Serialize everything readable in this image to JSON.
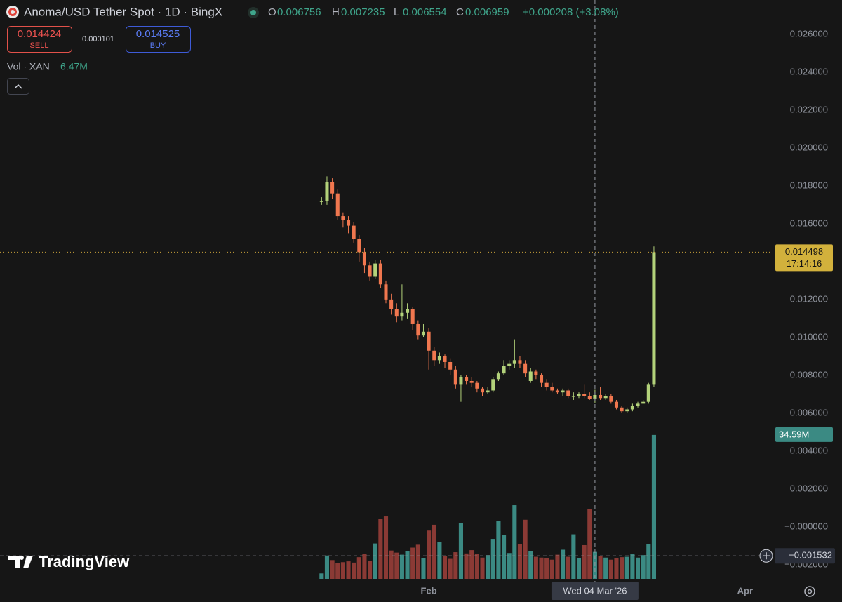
{
  "chart_data": {
    "type": "candlestick",
    "title": "Anoma/USD Tether Spot · 1D · BingX",
    "ohlc_prefixes": [
      "O",
      "H",
      "L",
      "C"
    ],
    "change": "+0.000208 (+3.08%)",
    "open": [
      0.01715,
      0.0172,
      0.0182,
      0.0176,
      0.0164,
      0.0162,
      0.0159,
      0.0152,
      0.0145,
      0.0138,
      0.0132,
      0.0139,
      0.0128,
      0.012,
      0.0115,
      0.0111,
      0.0113,
      0.0115,
      0.0107,
      0.0101,
      0.0103,
      0.0093,
      0.0088,
      0.009,
      0.0087,
      0.0083,
      0.0075,
      0.0079,
      0.0077,
      0.0076,
      0.0073,
      0.0071,
      0.0072,
      0.0078,
      0.0081,
      0.0085,
      0.0086,
      0.0088,
      0.0086,
      0.0077,
      0.0082,
      0.008,
      0.0076,
      0.0074,
      0.0072,
      0.0071,
      0.0072,
      0.0069,
      0.0069,
      0.007,
      0.0069,
      0.006756,
      0.00696,
      0.0068,
      0.0069,
      0.0066,
      0.0063,
      0.0061,
      0.0062,
      0.0064,
      0.0065,
      0.0066,
      0.0075
    ],
    "high": [
      0.0174,
      0.0185,
      0.0184,
      0.0178,
      0.0166,
      0.0164,
      0.0161,
      0.0154,
      0.0147,
      0.014,
      0.0141,
      0.0141,
      0.013,
      0.0123,
      0.0118,
      0.0128,
      0.0118,
      0.0116,
      0.0109,
      0.0107,
      0.0105,
      0.0095,
      0.0092,
      0.0091,
      0.0089,
      0.0085,
      0.008,
      0.008,
      0.0079,
      0.0077,
      0.0074,
      0.0074,
      0.0079,
      0.0082,
      0.0088,
      0.0088,
      0.0099,
      0.009,
      0.0088,
      0.0084,
      0.0083,
      0.0081,
      0.0078,
      0.0076,
      0.0073,
      0.0073,
      0.0073,
      0.0071,
      0.0071,
      0.0075,
      0.0071,
      0.007235,
      0.0074,
      0.007,
      0.007,
      0.0067,
      0.0064,
      0.0063,
      0.0065,
      0.0066,
      0.0067,
      0.0076,
      0.0148
    ],
    "low": [
      0.017,
      0.017,
      0.0173,
      0.0162,
      0.0158,
      0.0155,
      0.015,
      0.014,
      0.0134,
      0.013,
      0.0131,
      0.0126,
      0.0118,
      0.0112,
      0.0108,
      0.0109,
      0.011,
      0.0104,
      0.0099,
      0.01,
      0.0083,
      0.0085,
      0.0086,
      0.0084,
      0.008,
      0.0073,
      0.0066,
      0.0075,
      0.0074,
      0.0071,
      0.0069,
      0.007,
      0.0071,
      0.0077,
      0.008,
      0.0083,
      0.0084,
      0.0084,
      0.0079,
      0.0076,
      0.0078,
      0.0074,
      0.0072,
      0.0071,
      0.007,
      0.0069,
      0.0068,
      0.0067,
      0.0068,
      0.0068,
      0.0067,
      0.006554,
      0.0067,
      0.0067,
      0.0065,
      0.0062,
      0.006,
      0.006,
      0.0061,
      0.0063,
      0.0065,
      0.0065,
      0.0074
    ],
    "close": [
      0.0172,
      0.0182,
      0.0176,
      0.0164,
      0.0162,
      0.0159,
      0.0152,
      0.0145,
      0.0138,
      0.0132,
      0.0139,
      0.0128,
      0.012,
      0.0115,
      0.0111,
      0.0113,
      0.0115,
      0.0107,
      0.0101,
      0.0103,
      0.0093,
      0.0088,
      0.009,
      0.0087,
      0.0083,
      0.0075,
      0.0079,
      0.0077,
      0.0076,
      0.0073,
      0.0071,
      0.0072,
      0.0078,
      0.0081,
      0.0085,
      0.0086,
      0.0088,
      0.0086,
      0.0081,
      0.0082,
      0.008,
      0.0076,
      0.0074,
      0.0072,
      0.0071,
      0.0072,
      0.0069,
      0.0069,
      0.007,
      0.0069,
      0.006751,
      0.006959,
      0.0068,
      0.0069,
      0.0066,
      0.0063,
      0.0061,
      0.0062,
      0.0064,
      0.0065,
      0.0066,
      0.0075,
      0.014498
    ],
    "up_color": "#b3d27a",
    "down_color": "#f0774f",
    "ylim": [
      -0.00293,
      0.02781
    ],
    "yticks": [
      {
        "value": 0.026,
        "label": "0.026000"
      },
      {
        "value": 0.024,
        "label": "0.024000"
      },
      {
        "value": 0.022,
        "label": "0.022000"
      },
      {
        "value": 0.02,
        "label": "0.020000"
      },
      {
        "value": 0.018,
        "label": "0.018000"
      },
      {
        "value": 0.016,
        "label": "0.016000"
      },
      {
        "value": 0.012,
        "label": "0.012000"
      },
      {
        "value": 0.01,
        "label": "0.010000"
      },
      {
        "value": 0.008,
        "label": "0.008000"
      },
      {
        "value": 0.006,
        "label": "0.006000"
      },
      {
        "value": 0.004,
        "label": "0.004000"
      },
      {
        "value": 0.002,
        "label": "0.002000"
      },
      {
        "value": 0,
        "label": "−0.000000"
      },
      {
        "value": -0.002,
        "label": "−0.002000"
      }
    ],
    "xlim": [
      -60,
      84
    ],
    "xticks": [
      {
        "value": 20,
        "label": "Feb"
      },
      {
        "value": 79,
        "label": "Apr"
      }
    ],
    "volume": {
      "name": "Vol · XAN",
      "values": [
        1.3,
        5.6,
        4.5,
        3.8,
        4.0,
        4.2,
        3.9,
        5.2,
        6.0,
        4.3,
        8.5,
        14.4,
        15.0,
        6.8,
        6.3,
        5.8,
        6.6,
        7.5,
        8.2,
        4.9,
        11.6,
        13.0,
        8.8,
        5.5,
        4.8,
        6.4,
        13.4,
        6.1,
        6.9,
        5.9,
        5.1,
        5.7,
        9.6,
        13.9,
        10.5,
        6.2,
        17.7,
        8.3,
        14.2,
        6.7,
        5.3,
        5.1,
        5.0,
        4.6,
        5.8,
        7.0,
        5.3,
        10.7,
        5.0,
        8.1,
        16.7,
        6.47,
        5.4,
        5.1,
        4.6,
        5.0,
        5.2,
        5.3,
        5.9,
        5.1,
        5.7,
        8.4,
        34.59
      ],
      "value_labels": [
        null,
        null,
        null,
        null,
        null,
        null,
        null,
        null,
        null,
        null,
        null,
        null,
        null,
        null,
        null,
        null,
        null,
        null,
        null,
        null,
        null,
        null,
        null,
        null,
        null,
        null,
        null,
        null,
        null,
        null,
        null,
        null,
        null,
        null,
        null,
        null,
        null,
        null,
        null,
        null,
        null,
        null,
        null,
        null,
        null,
        null,
        null,
        null,
        null,
        null,
        null,
        "6.47M",
        null,
        null,
        null,
        null,
        null,
        null,
        null,
        null,
        null,
        null,
        "34.59M"
      ],
      "up_color": "#3b8a83",
      "down_color": "#8b3a35"
    },
    "crosshair": {
      "x": {
        "value": 51,
        "label": "Wed 04 Mar '26"
      },
      "y": {
        "value": -0.001532,
        "label": "−0.001532"
      }
    },
    "countdown": "17:14:16"
  },
  "trade_panel": {
    "sell_price": "0.014424",
    "sell_label": "SELL",
    "spread": "0.000101",
    "buy_price": "0.014525",
    "buy_label": "BUY"
  },
  "branding": "TradingView"
}
